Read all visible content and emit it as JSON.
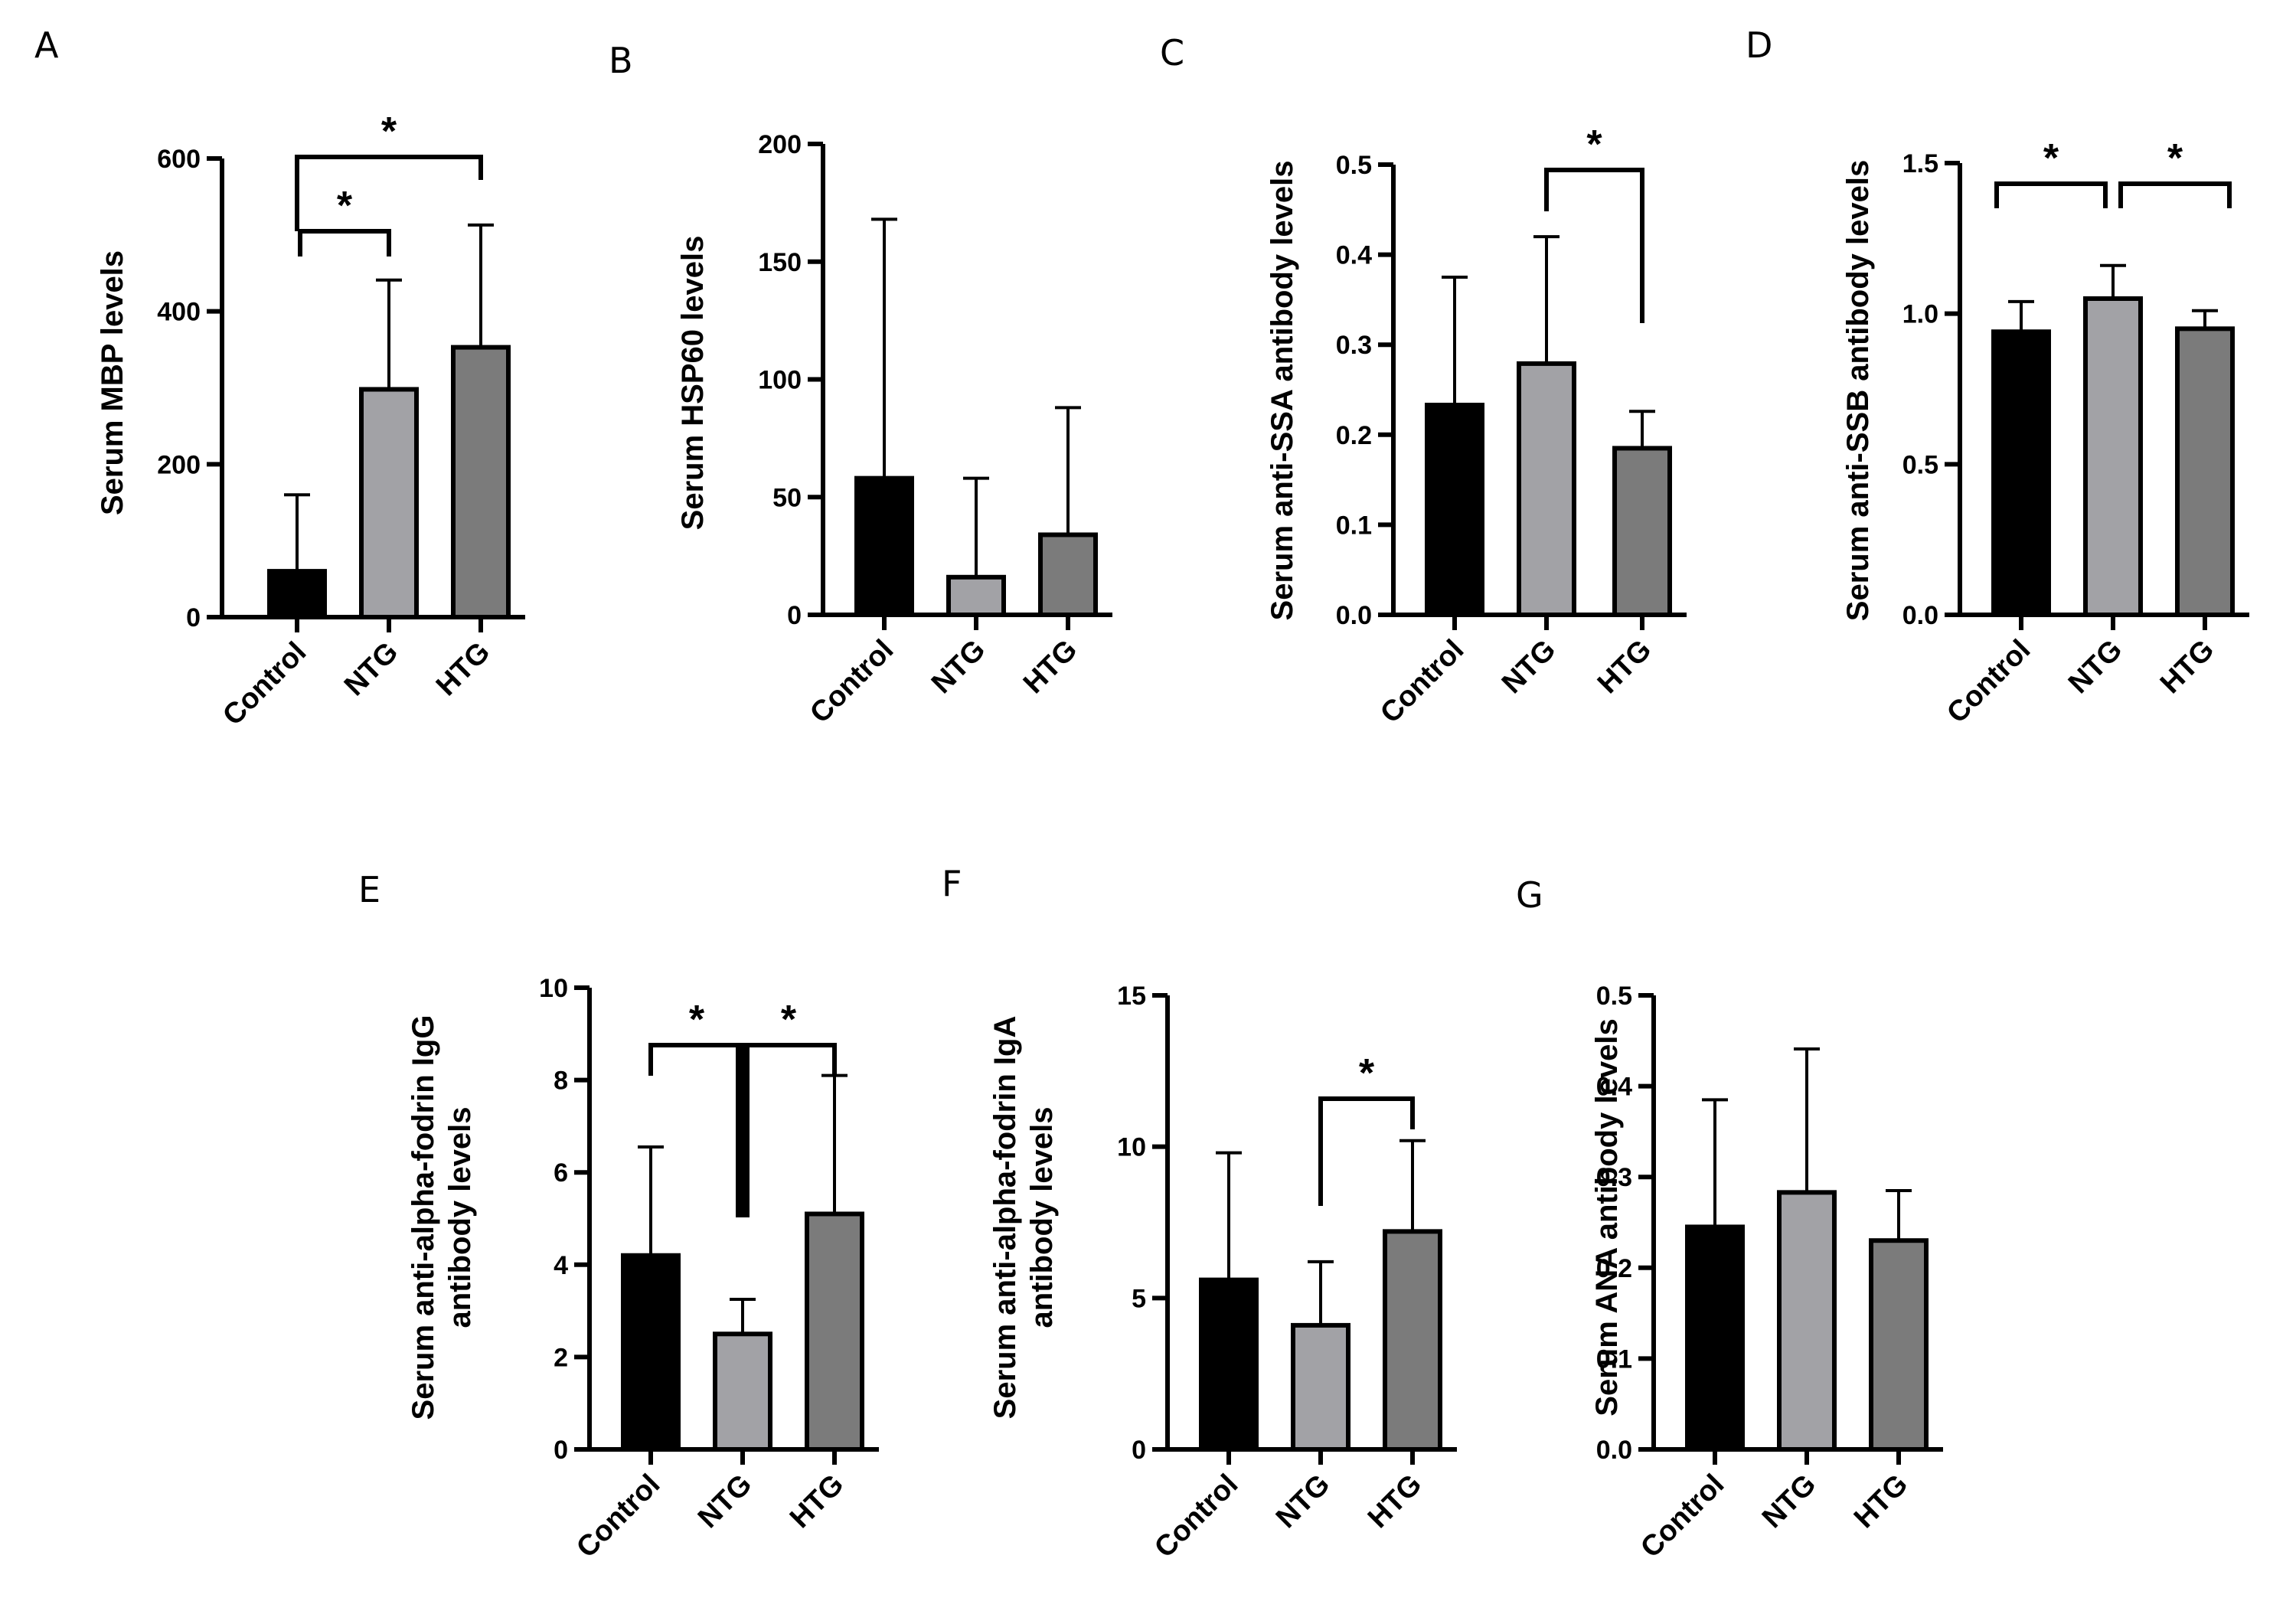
{
  "colors": {
    "control": "#000000",
    "ntg": "#a2a2a6",
    "htg": "#7b7b7b",
    "line": "#000000"
  },
  "chart_data": [
    {
      "panel": "A",
      "type": "bar",
      "categories": [
        "Control",
        "NTG",
        "HTG"
      ],
      "values": [
        60,
        298,
        353
      ],
      "errors": [
        100,
        143,
        160
      ],
      "ylabel": [
        "Serum MBP levels"
      ],
      "ylim": [
        0,
        600
      ],
      "ticks": [
        0,
        200,
        400,
        600
      ],
      "tick_labels": [
        "0",
        "200",
        "400",
        "600"
      ],
      "significance": [
        {
          "from": 0,
          "to": 2,
          "label": "*"
        },
        {
          "from": 0,
          "to": 1,
          "label": "*"
        }
      ]
    },
    {
      "panel": "B",
      "type": "bar",
      "categories": [
        "Control",
        "NTG",
        "HTG"
      ],
      "values": [
        58,
        16,
        34
      ],
      "errors": [
        110,
        42,
        54
      ],
      "ylabel": [
        "Serum HSP60 levels"
      ],
      "ylim": [
        0,
        200
      ],
      "ticks": [
        0,
        50,
        100,
        150,
        200
      ],
      "tick_labels": [
        "0",
        "50",
        "100",
        "150",
        "200"
      ],
      "significance": []
    },
    {
      "panel": "C",
      "type": "bar",
      "categories": [
        "Control",
        "NTG",
        "HTG"
      ],
      "values": [
        0.233,
        0.279,
        0.185
      ],
      "errors": [
        0.142,
        0.141,
        0.041
      ],
      "ylabel": [
        "Serum anti-SSA antibody levels"
      ],
      "ylim": [
        0,
        0.5
      ],
      "ticks": [
        0,
        0.1,
        0.2,
        0.3,
        0.4,
        0.5
      ],
      "tick_labels": [
        "0.0",
        "0.1",
        "0.2",
        "0.3",
        "0.4",
        "0.5"
      ],
      "significance": [
        {
          "from": 1,
          "to": 2,
          "label": "*"
        }
      ]
    },
    {
      "panel": "D",
      "type": "bar",
      "categories": [
        "Control",
        "NTG",
        "HTG"
      ],
      "values": [
        0.94,
        1.05,
        0.95
      ],
      "errors": [
        0.1,
        0.11,
        0.06
      ],
      "ylabel": [
        "Serum anti-SSB antibody levels"
      ],
      "ylim": [
        0,
        1.5
      ],
      "ticks": [
        0,
        0.5,
        1.0,
        1.5
      ],
      "tick_labels": [
        "0.0",
        "0.5",
        "1.0",
        "1.5"
      ],
      "significance": [
        {
          "from": 0,
          "to": 1,
          "label": "*"
        },
        {
          "from": 1,
          "to": 2,
          "label": "*"
        }
      ]
    },
    {
      "panel": "E",
      "type": "bar",
      "categories": [
        "Control",
        "NTG",
        "HTG"
      ],
      "values": [
        4.2,
        2.5,
        5.1
      ],
      "errors": [
        2.35,
        0.75,
        3.0
      ],
      "ylabel": [
        "Serum anti-alpha-fodrin IgG",
        "antibody levels"
      ],
      "ylim": [
        0,
        10
      ],
      "ticks": [
        0,
        2,
        4,
        6,
        8,
        10
      ],
      "tick_labels": [
        "0",
        "2",
        "4",
        "6",
        "8",
        "10"
      ],
      "significance": [
        {
          "from": 0,
          "to": 1,
          "label": "*"
        },
        {
          "from": 1,
          "to": 2,
          "label": "*"
        }
      ]
    },
    {
      "panel": "F",
      "type": "bar",
      "categories": [
        "Control",
        "NTG",
        "HTG"
      ],
      "values": [
        5.6,
        4.1,
        7.2
      ],
      "errors": [
        4.2,
        2.1,
        3.0
      ],
      "ylabel": [
        "Serum anti-alpha-fodrin IgA",
        "antibody levels"
      ],
      "ylim": [
        0,
        15
      ],
      "ticks": [
        0,
        5,
        10,
        15
      ],
      "tick_labels": [
        "0",
        "5",
        "10",
        "15"
      ],
      "significance": [
        {
          "from": 1,
          "to": 2,
          "label": "*"
        }
      ]
    },
    {
      "panel": "G",
      "type": "bar",
      "categories": [
        "Control",
        "NTG",
        "HTG"
      ],
      "values": [
        0.245,
        0.283,
        0.23
      ],
      "errors": [
        0.14,
        0.158,
        0.055
      ],
      "ylabel": [
        "Serum  ANA antibody levels"
      ],
      "ylim": [
        0,
        0.5
      ],
      "ticks": [
        0,
        0.1,
        0.2,
        0.3,
        0.4,
        0.5
      ],
      "tick_labels": [
        "0.0",
        "0.1",
        "0.2",
        "0.3",
        "0.4",
        "0.5"
      ],
      "significance": []
    }
  ]
}
